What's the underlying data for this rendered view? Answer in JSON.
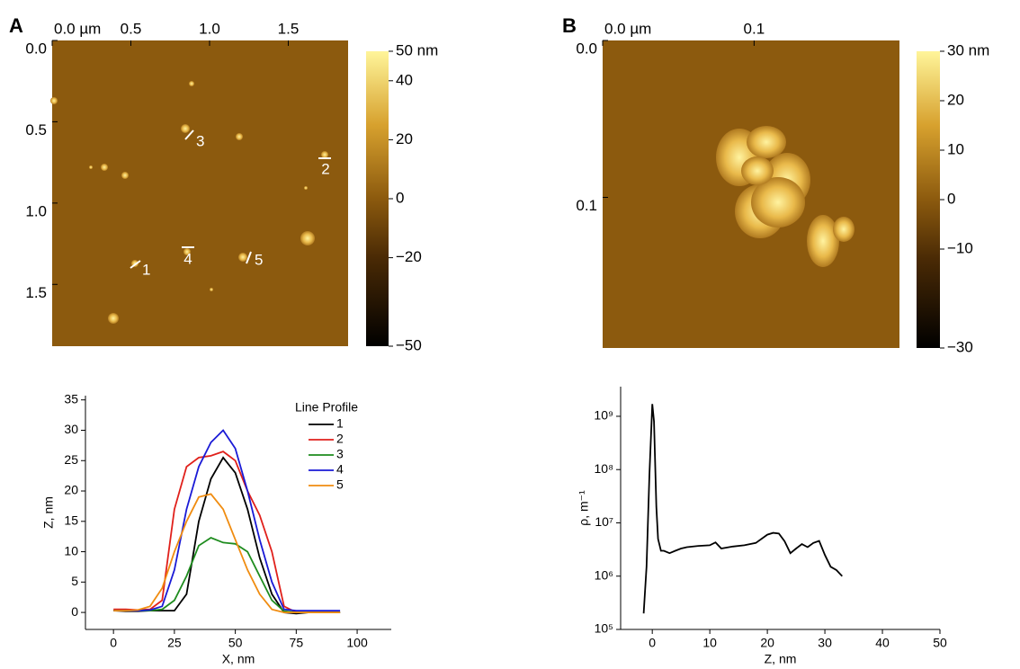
{
  "chart_data": [
    {
      "type": "image",
      "panel": "A",
      "xlim": [
        0,
        1.88
      ],
      "xticks": [
        {
          "value": 0,
          "label": "0.0 µm"
        },
        0.5,
        {
          "value": 1,
          "label": "1.0"
        },
        1.5
      ],
      "ylim": [
        0,
        1.88
      ],
      "yticks": [
        {
          "value": 0,
          "label": "0.0"
        },
        0.5,
        {
          "value": 1,
          "label": "1.0"
        },
        1.5
      ],
      "clim": [
        -50,
        50
      ],
      "cticks": [
        {
          "value": 50,
          "label": "50 nm"
        },
        40,
        20,
        0,
        {
          "value": -20,
          "label": "−20"
        },
        {
          "value": -50,
          "label": "−50"
        }
      ]
    },
    {
      "type": "image",
      "panel": "B",
      "xlim": [
        0,
        0.196
      ],
      "xticks": [
        {
          "value": 0,
          "label": "0.0 µm"
        },
        0.1
      ],
      "ylim": [
        0,
        0.196
      ],
      "yticks": [
        {
          "value": 0,
          "label": "0.0"
        },
        0.1
      ],
      "clim": [
        -30,
        30
      ],
      "cticks": [
        {
          "value": 30,
          "label": "30 nm"
        },
        20,
        10,
        0,
        {
          "value": -10,
          "label": "−10"
        },
        {
          "value": -30,
          "label": "−30"
        }
      ]
    },
    {
      "type": "line",
      "xlabel": "X, nm",
      "ylabel": "Z, nm",
      "xlim": [
        -11.5,
        114
      ],
      "xticks": [
        0,
        25,
        50,
        75,
        100
      ],
      "ylim": [
        -2.8,
        35.7
      ],
      "yticks": [
        0,
        5,
        10,
        15,
        20,
        25,
        30,
        35
      ],
      "legend_title": "Line Profile",
      "legend": "upper right",
      "x": [
        0,
        5,
        10,
        15,
        20,
        25,
        30,
        35,
        40,
        45,
        50,
        55,
        60,
        65,
        70,
        75,
        80,
        85,
        90,
        93
      ],
      "series": [
        {
          "name": "1",
          "color": "#000000",
          "values": [
            0.3,
            0.2,
            0.2,
            0.3,
            0.3,
            0.3,
            3,
            15,
            22,
            25.5,
            23,
            17,
            9,
            3,
            0,
            -0.2,
            0,
            0,
            0,
            0
          ]
        },
        {
          "name": "2",
          "color": "#e0201b",
          "values": [
            0.5,
            0.5,
            0.4,
            0.5,
            2,
            17,
            24,
            25.5,
            25.8,
            26.5,
            25,
            20,
            16,
            10,
            1,
            0,
            0,
            0,
            0,
            0
          ]
        },
        {
          "name": "3",
          "color": "#1e8c1e",
          "values": [
            0.3,
            0.3,
            0.3,
            0.3,
            0.5,
            2,
            6,
            11,
            12.3,
            11.5,
            11.3,
            10,
            6,
            2,
            0.2,
            0,
            0,
            0,
            0,
            0
          ]
        },
        {
          "name": "4",
          "color": "#1a1ad6",
          "values": [
            0.3,
            0.3,
            0.3,
            0.4,
            1,
            7,
            17,
            24,
            28,
            30,
            27,
            20,
            12,
            5,
            0.5,
            0.3,
            0.3,
            0.3,
            0.3,
            0.3
          ]
        },
        {
          "name": "5",
          "color": "#f08c10",
          "values": [
            0.3,
            0.3,
            0.4,
            1,
            4,
            10,
            15,
            19,
            19.5,
            17,
            12,
            7,
            3,
            0.5,
            0,
            0,
            0,
            0,
            0,
            0
          ]
        }
      ]
    },
    {
      "type": "line",
      "xlabel": "Z, nm",
      "ylabel": "ρ, m⁻¹",
      "log_y": true,
      "xlim": [
        -5.5,
        50
      ],
      "xticks": [
        0,
        10,
        20,
        30,
        40,
        50
      ],
      "ylim": [
        100000,
        3600000000
      ],
      "yticks": [
        {
          "value": 100000,
          "label": "10⁵"
        },
        {
          "value": 1000000,
          "label": "10⁶"
        },
        {
          "value": 10000000,
          "label": "10⁷"
        },
        {
          "value": 100000000,
          "label": "10⁸"
        },
        {
          "value": 1000000000,
          "label": "10⁹"
        }
      ],
      "color": "#000000",
      "x": [
        -1.5,
        -1,
        -0.5,
        0,
        0.3,
        0.7,
        1,
        1.5,
        2,
        3,
        4,
        5,
        6,
        8,
        10,
        11,
        12,
        14,
        16,
        18,
        20,
        21,
        22,
        23,
        24,
        25,
        26,
        27,
        28,
        29,
        30,
        31,
        32,
        33
      ],
      "values": [
        200000,
        1500000,
        80000000,
        1700000000,
        800000000,
        20000000,
        5000000,
        3000000,
        3000000,
        2700000,
        3000000,
        3300000,
        3500000,
        3700000,
        3800000,
        4300000,
        3300000,
        3600000,
        3800000,
        4200000,
        6000000,
        6500000,
        6300000,
        4500000,
        2700000,
        3300000,
        4000000,
        3500000,
        4200000,
        4600000,
        2500000,
        1500000,
        1300000,
        1000000
      ]
    }
  ]
}
